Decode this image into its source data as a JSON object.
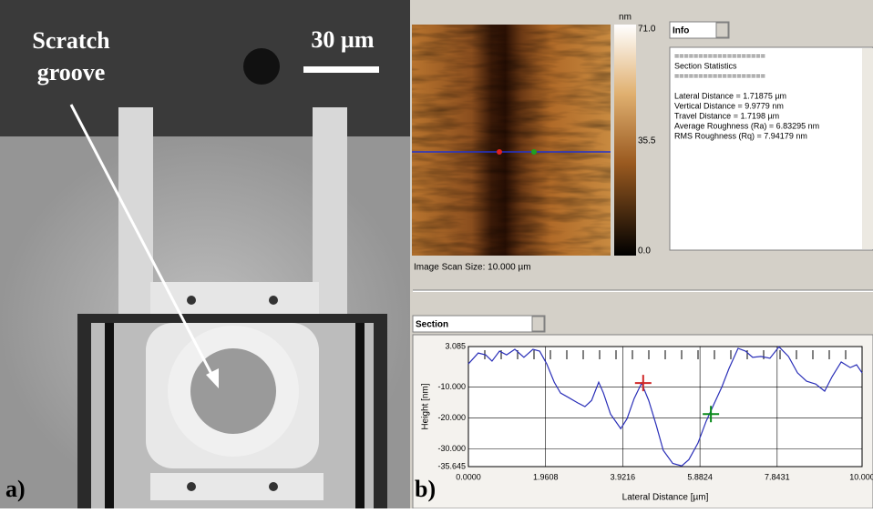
{
  "panel_a": {
    "label": "a)",
    "annotation": [
      "Scratch",
      "groove"
    ],
    "scale_bar": "30 µm"
  },
  "panel_b": {
    "label": "b)",
    "colorbar": {
      "unit": "nm",
      "max": "71.0",
      "mid": "35.5",
      "min": "0.0"
    },
    "scan_size": "Image Scan Size: 10.000 µm",
    "info_dropdown": "Info",
    "info_text": [
      "===================",
      "Section Statistics",
      "===================",
      "Lateral Distance = 1.71875 µm",
      "Vertical Distance = 9.9779 nm",
      "Travel Distance = 1.7198 µm",
      "Average Roughness (Ra) = 6.83295 nm",
      "RMS Roughness (Rq) = 7.94179 nm"
    ],
    "section_dropdown": "Section"
  },
  "chart_data": {
    "type": "line",
    "xlabel": "Lateral Distance [µm]",
    "ylabel": "Height [nm]",
    "x": [
      0,
      0.25,
      0.44,
      0.6,
      0.79,
      0.97,
      1.18,
      1.41,
      1.64,
      1.81,
      1.99,
      2.18,
      2.34,
      2.55,
      2.78,
      2.96,
      3.13,
      3.31,
      3.43,
      3.61,
      3.87,
      4.03,
      4.21,
      4.4,
      4.58,
      4.77,
      4.95,
      5.19,
      5.42,
      5.6,
      5.83,
      6.04,
      6.23,
      6.44,
      6.62,
      6.85,
      7.04,
      7.22,
      7.43,
      7.66,
      7.89,
      8.13,
      8.36,
      8.59,
      8.82,
      9.05,
      9.24,
      9.47,
      9.7,
      9.86,
      10
    ],
    "series": [
      {
        "color": "#2a2fb8",
        "values": [
          -2.5,
          1,
          0.4,
          -1.6,
          1.6,
          0.4,
          2.2,
          -0.4,
          2.2,
          1.6,
          -2.5,
          -8.4,
          -11.9,
          -13.4,
          -15.1,
          -16.3,
          -14.3,
          -8.4,
          -11.9,
          -18.7,
          -23.4,
          -20.2,
          -13.7,
          -8.7,
          -14.3,
          -22.2,
          -30.4,
          -34.6,
          -35.4,
          -33.4,
          -28.1,
          -21,
          -15.7,
          -9.9,
          -4,
          2.5,
          1.6,
          -0.4,
          -0.1,
          -0.7,
          3,
          -0.1,
          -5.4,
          -8.1,
          -9,
          -11.3,
          -6.6,
          -1.9,
          -3.7,
          -2.8,
          -5.4
        ]
      }
    ],
    "markers": [
      {
        "x": 4.44,
        "y": -8.7,
        "color": "#d02828"
      },
      {
        "x": 6.16,
        "y": -18.7,
        "color": "#0a8a1a"
      }
    ],
    "xlim": [
      0,
      10
    ],
    "ylim": [
      -35.645,
      3.085
    ],
    "xticks": [
      {
        "value": 0,
        "label": "0.0000"
      },
      1.9608,
      {
        "value": 3.9216,
        "label": "3.9216"
      },
      {
        "value": 5.8824,
        "label": "5.8824"
      },
      {
        "value": 7.8431,
        "label": "7.8431"
      },
      {
        "value": 10,
        "label": "10.000"
      }
    ],
    "yticks": [
      3.085,
      {
        "value": -10,
        "label": "-10.000"
      },
      {
        "value": -20,
        "label": "-20.000"
      },
      {
        "value": -30,
        "label": "-30.000"
      },
      -35.645
    ],
    "grid": true
  }
}
